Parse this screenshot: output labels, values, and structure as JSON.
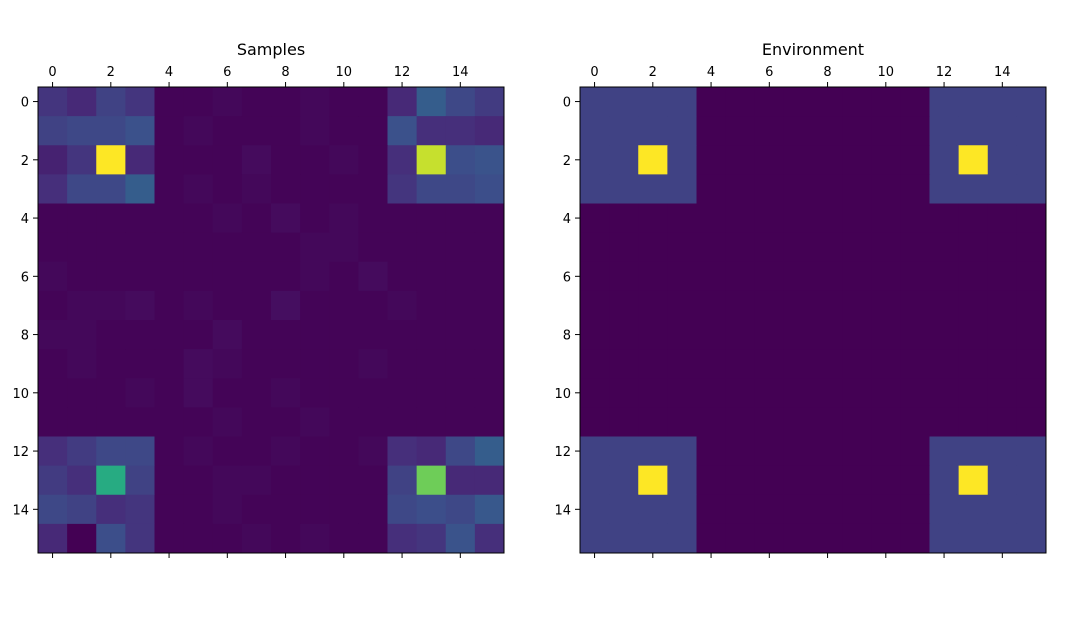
{
  "chart_data": [
    {
      "type": "heatmap",
      "title": "Samples",
      "xlabel": "",
      "ylabel": "",
      "xlim": [
        -0.5,
        15.5
      ],
      "ylim": [
        -0.5,
        15.5
      ],
      "x_ticks": [
        0,
        2,
        4,
        6,
        8,
        10,
        12,
        14
      ],
      "y_ticks": [
        0,
        2,
        4,
        6,
        8,
        10,
        12,
        14
      ],
      "x_tick_labels": [
        "0",
        "2",
        "4",
        "6",
        "8",
        "10",
        "12",
        "14"
      ],
      "y_tick_labels": [
        "0",
        "2",
        "4",
        "6",
        "8",
        "10",
        "12",
        "14"
      ],
      "x_axis_position": "top",
      "colormap": "viridis",
      "vmin": 0,
      "vmax": 1,
      "grid": false,
      "values": [
        [
          0.16,
          0.12,
          0.2,
          0.16,
          0.01,
          0.01,
          0.02,
          0.01,
          0.01,
          0.02,
          0.01,
          0.01,
          0.12,
          0.3,
          0.22,
          0.18
        ],
        [
          0.2,
          0.22,
          0.22,
          0.25,
          0.01,
          0.02,
          0.01,
          0.01,
          0.01,
          0.02,
          0.01,
          0.01,
          0.25,
          0.14,
          0.14,
          0.12
        ],
        [
          0.1,
          0.16,
          1.0,
          0.12,
          0.01,
          0.01,
          0.01,
          0.03,
          0.01,
          0.01,
          0.02,
          0.01,
          0.14,
          0.92,
          0.24,
          0.26
        ],
        [
          0.14,
          0.22,
          0.22,
          0.3,
          0.01,
          0.02,
          0.01,
          0.02,
          0.01,
          0.01,
          0.01,
          0.01,
          0.16,
          0.22,
          0.22,
          0.24
        ],
        [
          0.01,
          0.01,
          0.01,
          0.01,
          0.01,
          0.01,
          0.02,
          0.01,
          0.03,
          0.01,
          0.02,
          0.01,
          0.01,
          0.01,
          0.01,
          0.01
        ],
        [
          0.01,
          0.01,
          0.01,
          0.01,
          0.01,
          0.01,
          0.01,
          0.01,
          0.01,
          0.02,
          0.02,
          0.01,
          0.01,
          0.01,
          0.01,
          0.01
        ],
        [
          0.02,
          0.01,
          0.01,
          0.01,
          0.01,
          0.01,
          0.01,
          0.01,
          0.01,
          0.02,
          0.01,
          0.03,
          0.01,
          0.01,
          0.01,
          0.01
        ],
        [
          0.01,
          0.02,
          0.02,
          0.03,
          0.01,
          0.02,
          0.01,
          0.01,
          0.04,
          0.01,
          0.01,
          0.01,
          0.02,
          0.01,
          0.01,
          0.01
        ],
        [
          0.02,
          0.02,
          0.01,
          0.01,
          0.01,
          0.01,
          0.03,
          0.01,
          0.01,
          0.01,
          0.01,
          0.01,
          0.01,
          0.01,
          0.01,
          0.01
        ],
        [
          0.01,
          0.02,
          0.01,
          0.01,
          0.01,
          0.03,
          0.02,
          0.01,
          0.01,
          0.01,
          0.01,
          0.02,
          0.01,
          0.01,
          0.01,
          0.01
        ],
        [
          0.01,
          0.01,
          0.01,
          0.02,
          0.01,
          0.03,
          0.01,
          0.01,
          0.02,
          0.01,
          0.01,
          0.01,
          0.01,
          0.01,
          0.01,
          0.01
        ],
        [
          0.01,
          0.01,
          0.01,
          0.01,
          0.01,
          0.01,
          0.02,
          0.01,
          0.01,
          0.02,
          0.01,
          0.01,
          0.01,
          0.01,
          0.01,
          0.01
        ],
        [
          0.14,
          0.18,
          0.22,
          0.22,
          0.01,
          0.02,
          0.01,
          0.01,
          0.02,
          0.01,
          0.01,
          0.02,
          0.14,
          0.12,
          0.22,
          0.3
        ],
        [
          0.18,
          0.14,
          0.62,
          0.2,
          0.01,
          0.01,
          0.02,
          0.02,
          0.01,
          0.01,
          0.01,
          0.01,
          0.2,
          0.78,
          0.12,
          0.12
        ],
        [
          0.22,
          0.2,
          0.14,
          0.16,
          0.01,
          0.01,
          0.02,
          0.01,
          0.01,
          0.01,
          0.01,
          0.01,
          0.22,
          0.24,
          0.22,
          0.28
        ],
        [
          0.12,
          0.0,
          0.24,
          0.16,
          0.01,
          0.01,
          0.01,
          0.02,
          0.01,
          0.02,
          0.01,
          0.01,
          0.14,
          0.16,
          0.26,
          0.14
        ]
      ]
    },
    {
      "type": "heatmap",
      "title": "Environment",
      "xlabel": "",
      "ylabel": "",
      "xlim": [
        -0.5,
        15.5
      ],
      "ylim": [
        -0.5,
        15.5
      ],
      "x_ticks": [
        0,
        2,
        4,
        6,
        8,
        10,
        12,
        14
      ],
      "y_ticks": [
        0,
        2,
        4,
        6,
        8,
        10,
        12,
        14
      ],
      "x_tick_labels": [
        "0",
        "2",
        "4",
        "6",
        "8",
        "10",
        "12",
        "14"
      ],
      "y_tick_labels": [
        "0",
        "2",
        "4",
        "6",
        "8",
        "10",
        "12",
        "14"
      ],
      "x_axis_position": "top",
      "colormap": "viridis",
      "vmin": 0,
      "vmax": 1,
      "grid": false,
      "values": [
        [
          0.2,
          0.2,
          0.2,
          0.2,
          0,
          0,
          0,
          0,
          0,
          0,
          0,
          0,
          0.2,
          0.2,
          0.2,
          0.2
        ],
        [
          0.2,
          0.2,
          0.2,
          0.2,
          0,
          0,
          0,
          0,
          0,
          0,
          0,
          0,
          0.2,
          0.2,
          0.2,
          0.2
        ],
        [
          0.2,
          0.2,
          1.0,
          0.2,
          0,
          0,
          0,
          0,
          0,
          0,
          0,
          0,
          0.2,
          1.0,
          0.2,
          0.2
        ],
        [
          0.2,
          0.2,
          0.2,
          0.2,
          0,
          0,
          0,
          0,
          0,
          0,
          0,
          0,
          0.2,
          0.2,
          0.2,
          0.2
        ],
        [
          0,
          0,
          0,
          0,
          0,
          0,
          0,
          0,
          0,
          0,
          0,
          0,
          0,
          0,
          0,
          0
        ],
        [
          0,
          0,
          0,
          0,
          0,
          0,
          0,
          0,
          0,
          0,
          0,
          0,
          0,
          0,
          0,
          0
        ],
        [
          0,
          0,
          0,
          0,
          0,
          0,
          0,
          0,
          0,
          0,
          0,
          0,
          0,
          0,
          0,
          0
        ],
        [
          0,
          0,
          0,
          0,
          0,
          0,
          0,
          0,
          0,
          0,
          0,
          0,
          0,
          0,
          0,
          0
        ],
        [
          0,
          0,
          0,
          0,
          0,
          0,
          0,
          0,
          0,
          0,
          0,
          0,
          0,
          0,
          0,
          0
        ],
        [
          0,
          0,
          0,
          0,
          0,
          0,
          0,
          0,
          0,
          0,
          0,
          0,
          0,
          0,
          0,
          0
        ],
        [
          0,
          0,
          0,
          0,
          0,
          0,
          0,
          0,
          0,
          0,
          0,
          0,
          0,
          0,
          0,
          0
        ],
        [
          0,
          0,
          0,
          0,
          0,
          0,
          0,
          0,
          0,
          0,
          0,
          0,
          0,
          0,
          0,
          0
        ],
        [
          0.2,
          0.2,
          0.2,
          0.2,
          0,
          0,
          0,
          0,
          0,
          0,
          0,
          0,
          0.2,
          0.2,
          0.2,
          0.2
        ],
        [
          0.2,
          0.2,
          1.0,
          0.2,
          0,
          0,
          0,
          0,
          0,
          0,
          0,
          0,
          0.2,
          1.0,
          0.2,
          0.2
        ],
        [
          0.2,
          0.2,
          0.2,
          0.2,
          0,
          0,
          0,
          0,
          0,
          0,
          0,
          0,
          0.2,
          0.2,
          0.2,
          0.2
        ],
        [
          0.2,
          0.2,
          0.2,
          0.2,
          0,
          0,
          0,
          0,
          0,
          0,
          0,
          0,
          0.2,
          0.2,
          0.2,
          0.2
        ]
      ]
    }
  ]
}
